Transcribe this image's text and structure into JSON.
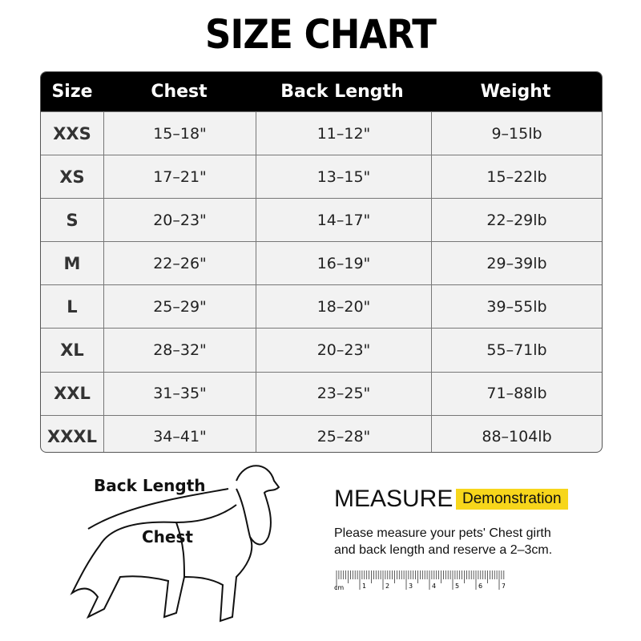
{
  "title": "SIZE CHART",
  "table": {
    "headers": [
      "Size",
      "Chest",
      "Back Length",
      "Weight"
    ],
    "rows": [
      [
        "XXS",
        "15–18\"",
        "11–12\"",
        "9–15lb"
      ],
      [
        "XS",
        "17–21\"",
        "13–15\"",
        "15–22lb"
      ],
      [
        "S",
        "20–23\"",
        "14–17\"",
        "22–29lb"
      ],
      [
        "M",
        "22–26\"",
        "16–19\"",
        "29–39lb"
      ],
      [
        "L",
        "25–29\"",
        "18–20\"",
        "39–55lb"
      ],
      [
        "XL",
        "28–32\"",
        "20–23\"",
        "55–71lb"
      ],
      [
        "XXL",
        "31–35\"",
        "23–25\"",
        "71–88lb"
      ],
      [
        "XXXL",
        "34–41\"",
        "25–28\"",
        "88–104lb"
      ]
    ]
  },
  "illustration": {
    "back_length_label": "Back Length",
    "chest_label": "Chest",
    "icon": "dog-outline"
  },
  "measure": {
    "heading": "MEASURE",
    "badge": "Demonstration",
    "badge_color": "#f7d61b",
    "line1": "Please measure your pets' Chest girth",
    "line2": "and back length and reserve a 2–3cm.",
    "ruler_unit": "cm",
    "ruler_numbers": [
      "1",
      "2",
      "3",
      "4",
      "5",
      "6",
      "7"
    ]
  }
}
